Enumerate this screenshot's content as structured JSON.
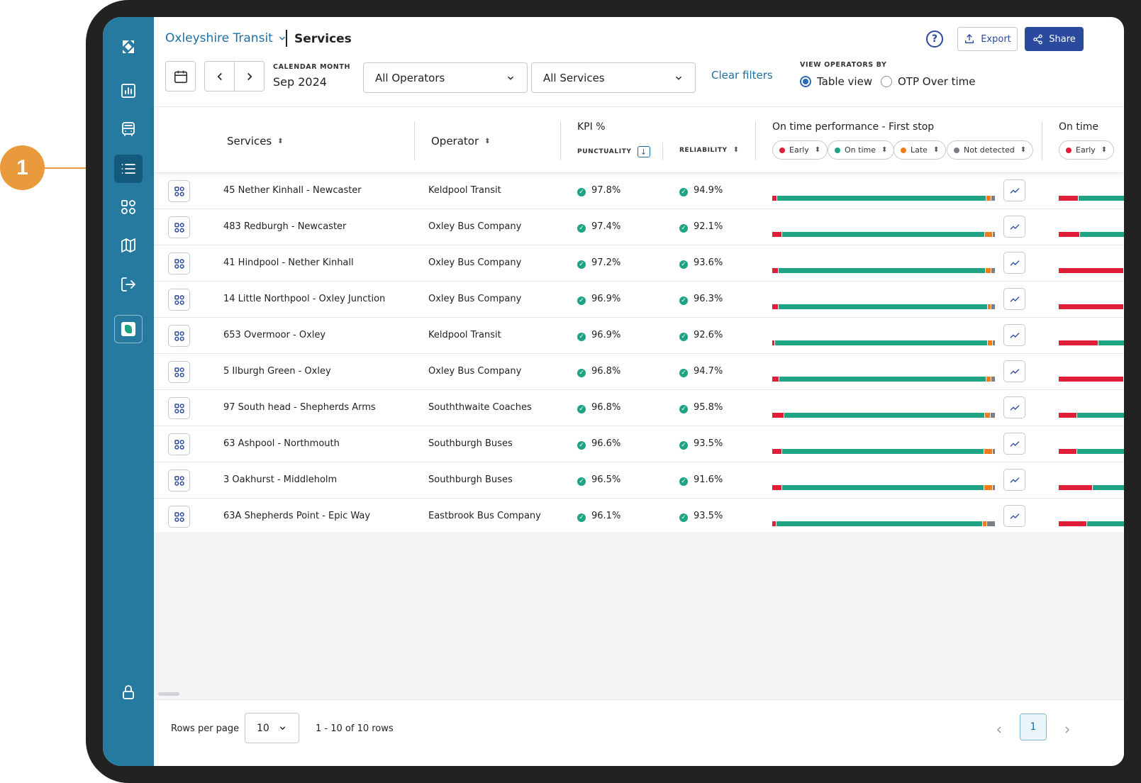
{
  "annotation": {
    "number": "1",
    "color": "#e89a3c"
  },
  "header": {
    "org": "Oxleyshire Transit",
    "page": "Services",
    "export_label": "Export",
    "share_label": "Share",
    "help_icon": "help-circle-icon"
  },
  "filters": {
    "month_caption": "CALENDAR MONTH",
    "month_value": "Sep 2024",
    "operators": "All Operators",
    "services": "All Services",
    "clear": "Clear filters",
    "view_caption": "VIEW OPERATORS BY",
    "view_options": [
      "Table view",
      "OTP Over time"
    ],
    "view_selected": "Table view"
  },
  "table": {
    "col_services": "Services",
    "col_operator": "Operator",
    "kpi_title": "KPI %",
    "col_punctuality": "PUNCTUALITY",
    "col_reliability": "RELIABILITY",
    "otp_title": "On time performance - First stop",
    "otp2_title": "On time",
    "chips": [
      "Early",
      "On time",
      "Late",
      "Not detected"
    ],
    "chip2": "Early",
    "status_colors": {
      "early": "#e01e37",
      "on_time": "#1ea384",
      "late": "#f07d1a",
      "not_detected": "#7c7f85"
    },
    "rows": [
      {
        "service": "45 Nether Kinhall - Newcaster",
        "operator": "Keldpool Transit",
        "punctuality": "97.8%",
        "reliability": "94.9%",
        "otp": [
          2,
          93.5,
          2,
          1.5
        ],
        "otp2": [
          30,
          70
        ]
      },
      {
        "service": "483 Redburgh - Newcaster",
        "operator": "Oxley Bus Company",
        "punctuality": "97.4%",
        "reliability": "92.1%",
        "otp": [
          4,
          91,
          3,
          1
        ],
        "otp2": [
          32,
          68
        ]
      },
      {
        "service": "41 Hindpool - Nether Kinhall",
        "operator": "Oxley Bus Company",
        "punctuality": "97.2%",
        "reliability": "93.6%",
        "otp": [
          2.5,
          93,
          2.5,
          1.5
        ],
        "otp2": [
          100,
          0
        ]
      },
      {
        "service": "14 Little Northpool - Oxley Junction",
        "operator": "Oxley Bus Company",
        "punctuality": "96.9%",
        "reliability": "96.3%",
        "otp": [
          2.5,
          93.5,
          1.5,
          1.5
        ],
        "otp2": [
          100,
          0
        ]
      },
      {
        "service": "653 Overmoor - Oxley",
        "operator": "Keldpool Transit",
        "punctuality": "96.9%",
        "reliability": "92.6%",
        "otp": [
          1,
          95,
          2,
          1
        ],
        "otp2": [
          60,
          40
        ]
      },
      {
        "service": "5 Ilburgh Green - Oxley",
        "operator": "Oxley Bus Company",
        "punctuality": "96.8%",
        "reliability": "94.7%",
        "otp": [
          3,
          92.5,
          2,
          1.5
        ],
        "otp2": [
          100,
          0
        ]
      },
      {
        "service": "97 South head - Shepherds Arms",
        "operator": "Souththwaite Coaches",
        "punctuality": "96.8%",
        "reliability": "95.8%",
        "otp": [
          5,
          89,
          2,
          2
        ],
        "otp2": [
          28,
          72
        ]
      },
      {
        "service": "63 Ashpool - Northmouth",
        "operator": "Southburgh Buses",
        "punctuality": "96.6%",
        "reliability": "93.5%",
        "otp": [
          4,
          90.5,
          3.5,
          1
        ],
        "otp2": [
          28,
          72
        ]
      },
      {
        "service": "3 Oakhurst - Middleholm",
        "operator": "Southburgh Buses",
        "punctuality": "96.5%",
        "reliability": "91.6%",
        "otp": [
          4,
          90.5,
          3.5,
          1
        ],
        "otp2": [
          52,
          48
        ]
      },
      {
        "service": "63A Shepherds Point - Epic Way",
        "operator": "Eastbrook Bus Company",
        "punctuality": "96.1%",
        "reliability": "93.5%",
        "otp": [
          1.5,
          93.5,
          1.5,
          3.5
        ],
        "otp2": [
          43,
          57
        ]
      }
    ]
  },
  "footer": {
    "rows_per_page_label": "Rows per page",
    "rows_per_page": "10",
    "range": "1 - 10 of 10 rows",
    "page": "1"
  }
}
